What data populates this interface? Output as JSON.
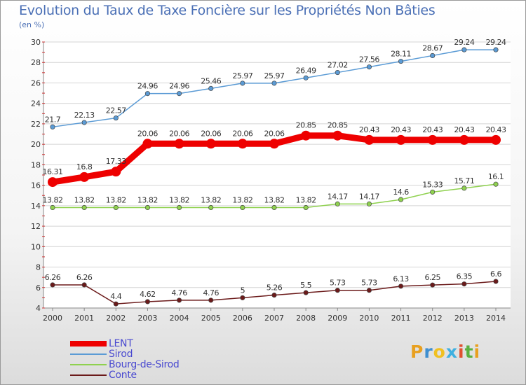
{
  "header": {
    "title": "Evolution du Taux de Taxe Foncière sur les Propriétés Non Bâties",
    "unit": "(en %)"
  },
  "logo": {
    "text": "Proxiti"
  },
  "chart_data": {
    "type": "line",
    "title": "Evolution du Taux de Taxe Foncière sur les Propriétés Non Bâties",
    "ylabel": "(en %)",
    "xlabel": "",
    "x": [
      2000,
      2001,
      2002,
      2003,
      2004,
      2005,
      2006,
      2007,
      2008,
      2009,
      2010,
      2011,
      2012,
      2013,
      2014
    ],
    "ylim": [
      4,
      30
    ],
    "yticks": [
      4,
      6,
      8,
      10,
      12,
      14,
      16,
      18,
      20,
      22,
      24,
      26,
      28,
      30
    ],
    "grid": "horizontal",
    "legend_position": "bottom-left",
    "series": [
      {
        "name": "LENT",
        "color": "#ee0000",
        "bold": true,
        "values": [
          16.31,
          16.8,
          17.33,
          20.06,
          20.06,
          20.06,
          20.06,
          20.06,
          20.85,
          20.85,
          20.43,
          20.43,
          20.43,
          20.43,
          20.43
        ],
        "labels": [
          "16.31",
          "16.8",
          "17.33",
          "20.06",
          "20.06",
          "20.06",
          "20.06",
          "20.06",
          "20.85",
          "20.85",
          "20.43",
          "20.43",
          "20.43",
          "20.43",
          "20.43"
        ]
      },
      {
        "name": "Sirod",
        "color": "#5b9bd5",
        "values": [
          21.7,
          22.13,
          22.57,
          24.96,
          24.96,
          25.46,
          25.97,
          25.97,
          26.49,
          27.02,
          27.56,
          28.11,
          28.67,
          29.24,
          29.24
        ],
        "labels": [
          "21.7",
          "22.13",
          "22.57",
          "24.96",
          "24.96",
          "25.46",
          "25.97",
          "25.97",
          "26.49",
          "27.02",
          "27.56",
          "28.11",
          "28.67",
          "29.24",
          "29.24"
        ]
      },
      {
        "name": "Bourg-de-Sirod",
        "color": "#8fd14f",
        "values": [
          13.82,
          13.82,
          13.82,
          13.82,
          13.82,
          13.82,
          13.82,
          13.82,
          13.82,
          14.17,
          14.17,
          14.6,
          15.33,
          15.71,
          16.1
        ],
        "labels": [
          "13.82",
          "13.82",
          "13.82",
          "13.82",
          "13.82",
          "13.82",
          "13.82",
          "13.82",
          "13.82",
          "14.17",
          "14.17",
          "14.6",
          "15.33",
          "15.71",
          "16.1"
        ]
      },
      {
        "name": "Conte",
        "color": "#6b1a1a",
        "values": [
          6.26,
          6.26,
          4.4,
          4.62,
          4.76,
          4.76,
          5,
          5.26,
          5.5,
          5.73,
          5.73,
          6.13,
          6.25,
          6.35,
          6.6
        ],
        "labels": [
          "6.26",
          "6.26",
          "4.4",
          "4.62",
          "4.76",
          "4.76",
          "5",
          "5.26",
          "5.5",
          "5.73",
          "5.73",
          "6.13",
          "6.25",
          "6.35",
          "6.6"
        ]
      }
    ]
  }
}
